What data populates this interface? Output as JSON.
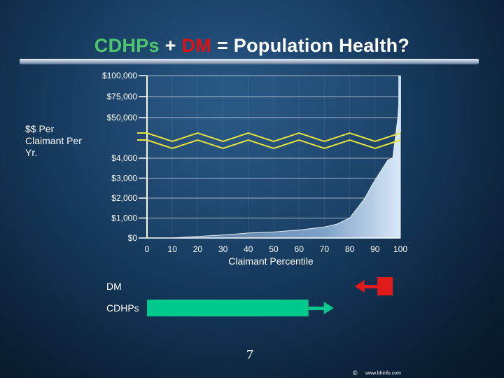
{
  "title": {
    "part1": "CDHPs",
    "part2": "+",
    "part3": "DM",
    "part4": "= Population Health?"
  },
  "chart_data": {
    "type": "area",
    "ylabel": "$$ Per Claimant Per Yr.",
    "xlabel": "Claimant Percentile",
    "x_ticks": [
      "0",
      "10",
      "20",
      "30",
      "40",
      "50",
      "60",
      "70",
      "80",
      "90",
      "100"
    ],
    "y_ticks_lower": [
      "$0",
      "$1,000",
      "$2,000",
      "$3,000",
      "$4,000"
    ],
    "y_ticks_upper": [
      "$50,000",
      "$75,000",
      "$100,000"
    ],
    "axis_break": true,
    "x": [
      0,
      10,
      20,
      30,
      40,
      50,
      60,
      70,
      75,
      80,
      83,
      86,
      89,
      92,
      95,
      97,
      99,
      100
    ],
    "y": [
      0,
      0,
      80,
      150,
      250,
      300,
      400,
      550,
      700,
      1000,
      1500,
      2000,
      2700,
      3300,
      3900,
      4500,
      50000,
      100000
    ],
    "colors": {
      "area": "#b8d2ee",
      "axis": "#ffffff",
      "break_lines": "#e8e23a"
    }
  },
  "bars": {
    "dm_label": "DM",
    "dm_range": [
      82,
      97
    ],
    "dm_color": "#e11a1a",
    "cdhp_label": "CDHPs",
    "cdhp_range": [
      0,
      72
    ],
    "cdhp_color": "#00c98d"
  },
  "page_number": "7",
  "footer": {
    "copyright": "©",
    "url": "www.bhinfo.com"
  }
}
